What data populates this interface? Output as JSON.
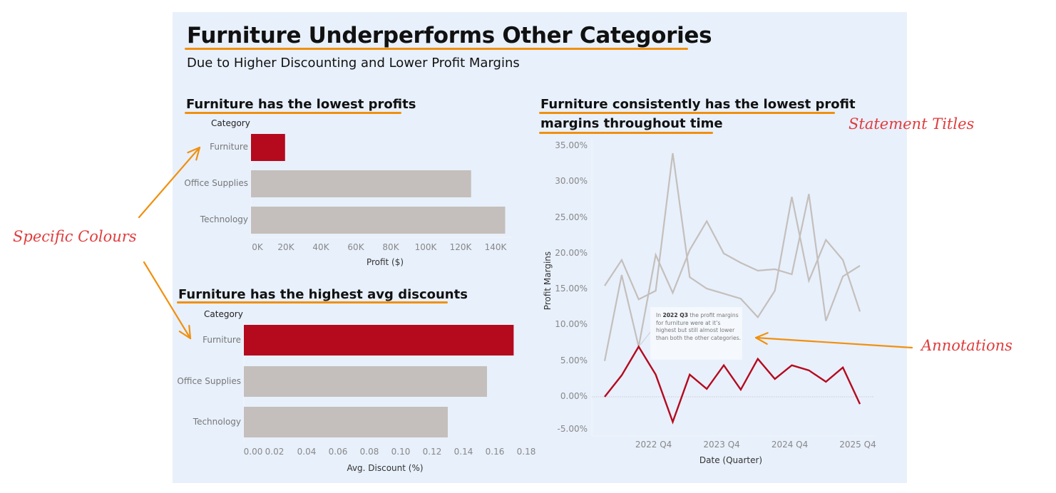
{
  "dashboard": {
    "title": "Furniture Underperforms Other Categories",
    "subtitle": "Due to Higher Discounting and Lower Profit Margins",
    "colors": {
      "highlight": "#b5091e",
      "neutral": "#c4bfbc",
      "panel": "#e8f0fb",
      "underline": "#f0900f",
      "callout": "#e03c3c"
    }
  },
  "callouts": {
    "specific_colours": "Specific Colours",
    "statement_titles": "Statement Titles",
    "annotations": "Annotations"
  },
  "annotation": {
    "prefix": "In",
    "highlight": "2022 Q3",
    "text": "the profit margins for furniture were at it’s highest but still almost lower than both the other categories."
  },
  "chart_data": [
    {
      "type": "bar",
      "orientation": "horizontal",
      "title": "Furniture has the lowest profits",
      "category_header": "Category",
      "categories": [
        "Furniture",
        "Office Supplies",
        "Technology"
      ],
      "values": [
        19500,
        126000,
        145500
      ],
      "highlight": "Furniture",
      "xlabel": "Profit ($)",
      "xlim": [
        0,
        150000
      ],
      "ticks": [
        0,
        20000,
        40000,
        60000,
        80000,
        100000,
        120000,
        140000
      ],
      "tick_labels": [
        "0K",
        "20K",
        "40K",
        "60K",
        "80K",
        "100K",
        "120K",
        "140K"
      ]
    },
    {
      "type": "bar",
      "orientation": "horizontal",
      "title": "Furniture has the highest avg discounts",
      "category_header": "Category",
      "categories": [
        "Furniture",
        "Office Supplies",
        "Technology"
      ],
      "values": [
        0.172,
        0.155,
        0.13
      ],
      "highlight": "Furniture",
      "xlabel": "Avg. Discount (%)",
      "xlim": [
        0,
        0.18
      ],
      "ticks": [
        0,
        0.02,
        0.04,
        0.06,
        0.08,
        0.1,
        0.12,
        0.14,
        0.16,
        0.18
      ],
      "tick_labels": [
        "0.00",
        "0.02",
        "0.04",
        "0.06",
        "0.08",
        "0.10",
        "0.12",
        "0.14",
        "0.16",
        "0.18"
      ]
    },
    {
      "type": "line",
      "title_line1": "Furniture consistently has the lowest profit",
      "title_line2": "margins throughout time",
      "x": [
        "2022 Q1",
        "2022 Q2",
        "2022 Q3",
        "2022 Q4",
        "2023 Q1",
        "2023 Q2",
        "2023 Q3",
        "2023 Q4",
        "2024 Q1",
        "2024 Q2",
        "2024 Q3",
        "2024 Q4",
        "2025 Q1",
        "2025 Q2",
        "2025 Q3",
        "2025 Q4"
      ],
      "series": [
        {
          "name": "Office Supplies",
          "values": [
            15.5,
            19.1,
            13.6,
            14.8,
            34.0,
            16.7,
            15.1,
            14.4,
            13.7,
            11.1,
            14.8,
            27.9,
            16.2,
            21.9,
            19.1,
            11.9
          ]
        },
        {
          "name": "Technology",
          "values": [
            5.0,
            17.0,
            7.0,
            19.8,
            14.5,
            20.5,
            24.5,
            20.0,
            18.7,
            17.6,
            17.8,
            17.1,
            28.3,
            10.6,
            16.8,
            18.3
          ]
        },
        {
          "name": "Furniture",
          "values": [
            0.0,
            3.0,
            7.0,
            3.1,
            -3.5,
            3.1,
            1.1,
            4.4,
            1.0,
            5.3,
            2.5,
            4.4,
            3.7,
            2.1,
            4.1,
            -1.0
          ]
        }
      ],
      "highlight": "Furniture",
      "ylabel": "Profit Margins",
      "xlabel": "Date (Quarter)",
      "ylim": [
        -5,
        35
      ],
      "yticks": [
        35,
        30,
        25,
        20,
        15,
        10,
        5,
        0,
        -5
      ],
      "ytick_labels": [
        "35.00%",
        "30.00%",
        "25.00%",
        "20.00%",
        "15.00%",
        "10.00%",
        "5.00%",
        "0.00%",
        "-5.00%"
      ],
      "xtick_labels": [
        "2022 Q4",
        "2023 Q4",
        "2024 Q4",
        "2025 Q4"
      ],
      "xtick_index": [
        3,
        7,
        11,
        15
      ]
    }
  ]
}
